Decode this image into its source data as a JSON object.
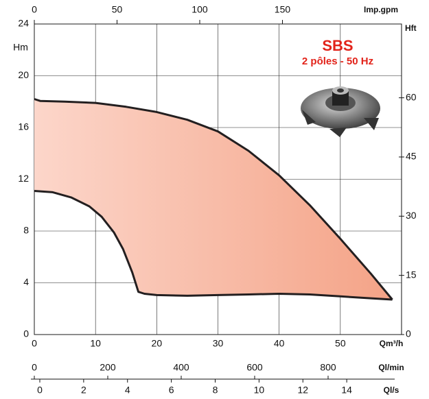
{
  "chart_data": {
    "type": "range",
    "title": "SBS",
    "subtitle": "2 pôles - 50 Hz",
    "xlabel": "Qm³/h",
    "ylabel": "Hm",
    "y2label": "Hft",
    "x2label": "Imp.gpm",
    "xlim": [
      0,
      60
    ],
    "xticks": [
      0,
      10,
      20,
      30,
      40,
      50
    ],
    "ylim": [
      0,
      24
    ],
    "yticks": [
      0,
      4,
      8,
      12,
      16,
      20,
      24
    ],
    "y2lim": [
      0,
      78.7
    ],
    "y2ticks": [
      0,
      15,
      30,
      45,
      60
    ],
    "x2lim": [
      0,
      222
    ],
    "x2ticks": [
      0,
      50,
      100,
      150
    ],
    "extra_axes": [
      {
        "label": "Ql/min",
        "lim": [
          0,
          1000
        ],
        "ticks": [
          0,
          200,
          400,
          600,
          800
        ]
      },
      {
        "label": "Ql/s",
        "lim": [
          -0.25,
          16.5
        ],
        "ticks": [
          0,
          2,
          4,
          6,
          8,
          10,
          12,
          14
        ]
      }
    ],
    "grid": true,
    "fill_colors": [
      "#fcd6ca",
      "#f4a387"
    ],
    "series": [
      {
        "color": "#231f20",
        "x": [
          0,
          1,
          5,
          10,
          15,
          20,
          25,
          30,
          35,
          40,
          45,
          50,
          55,
          58.5
        ],
        "values": [
          18.2,
          18.05,
          18.0,
          17.9,
          17.6,
          17.2,
          16.6,
          15.7,
          14.2,
          12.3,
          10.0,
          7.4,
          4.7,
          2.7
        ]
      },
      {
        "color": "#231f20",
        "x": [
          0,
          3,
          6,
          9,
          11,
          13,
          14.5,
          16,
          17,
          18,
          20,
          25,
          30,
          35,
          40,
          45,
          50,
          55,
          58.5
        ],
        "values": [
          11.1,
          11.0,
          10.6,
          9.9,
          9.1,
          7.9,
          6.6,
          4.8,
          3.3,
          3.15,
          3.05,
          3.0,
          3.05,
          3.1,
          3.15,
          3.1,
          2.95,
          2.8,
          2.7
        ]
      }
    ]
  }
}
